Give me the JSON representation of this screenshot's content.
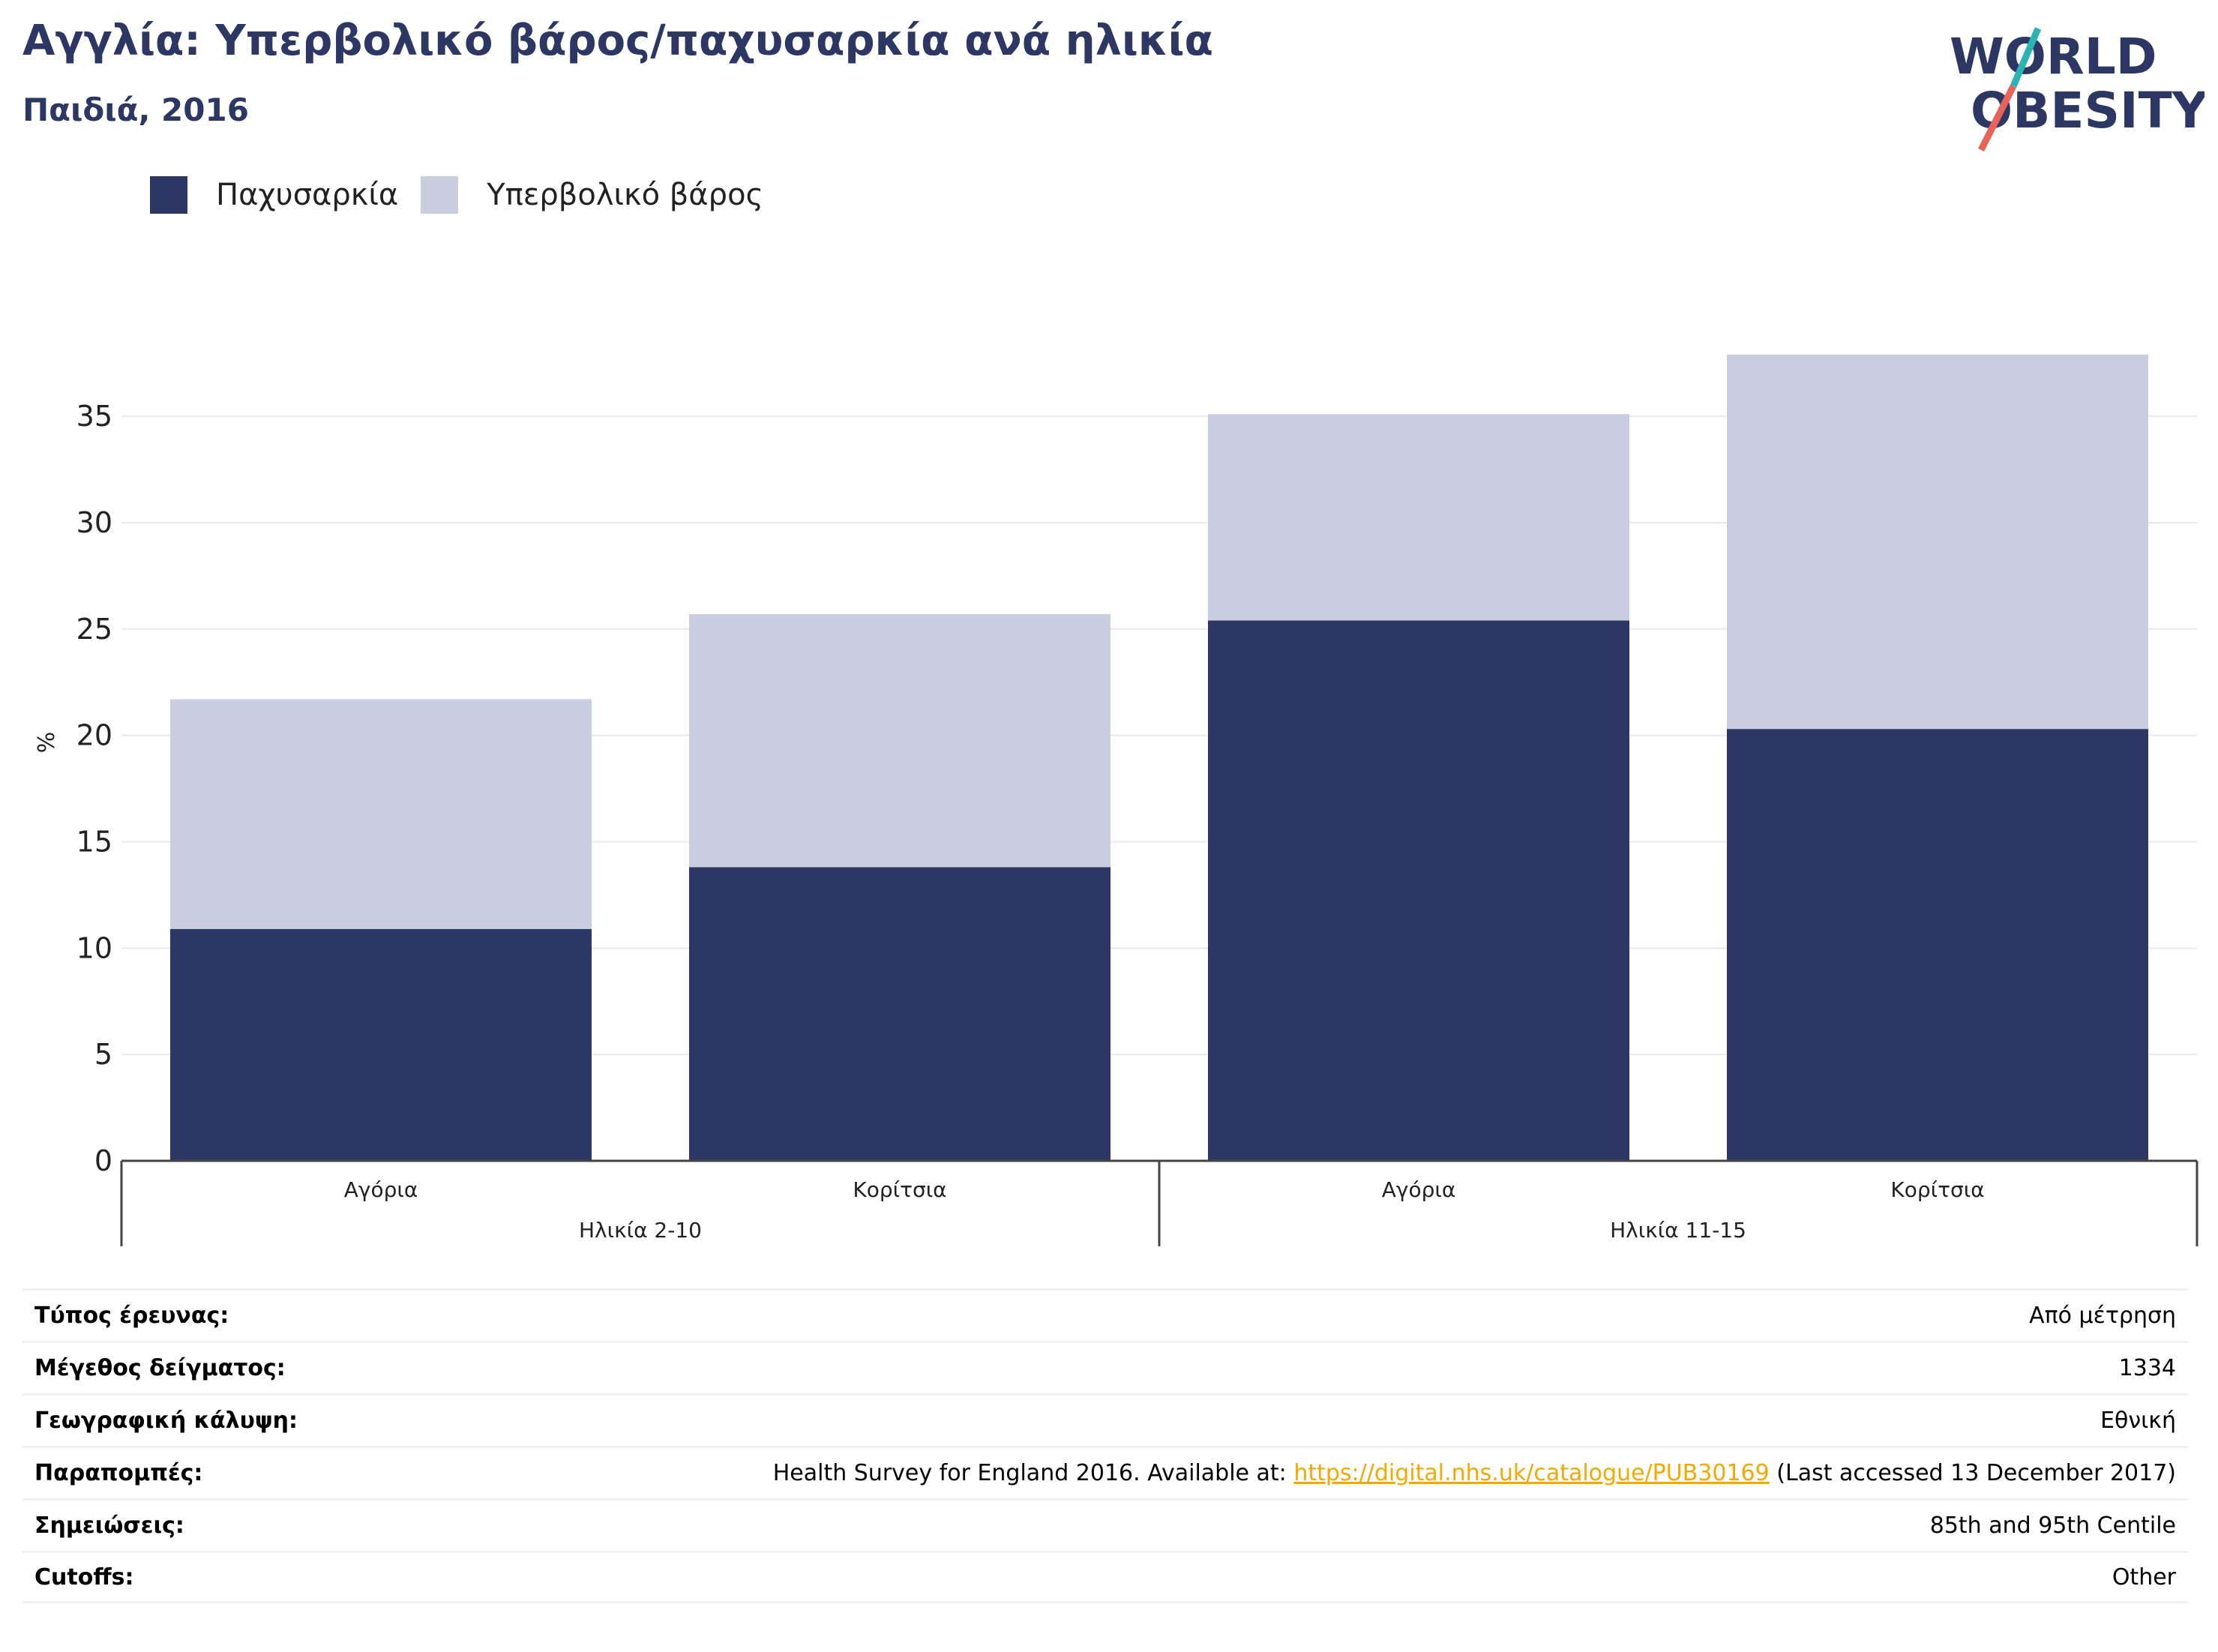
{
  "header": {
    "title": "Αγγλία: Υπερβολικό βάρος/παχυσαρκία ανά ηλικία",
    "subtitle": "Παιδιά, 2016"
  },
  "logo": {
    "line1": "WORLD",
    "line2": "OBESITY"
  },
  "colors": {
    "obesity": "#2c3764",
    "overweight": "#cacce0",
    "accent_teal": "#2ab3b1",
    "accent_red": "#e8645a",
    "link": "#f2a900"
  },
  "chart_data": {
    "type": "bar",
    "stacked": true,
    "ylabel": "%",
    "ylim": [
      0,
      38
    ],
    "yticks": [
      0,
      5,
      10,
      15,
      20,
      25,
      30,
      35
    ],
    "grid": true,
    "legend_position": "top-left",
    "categories": [
      "Αγόρια",
      "Κορίτσια",
      "Αγόρια",
      "Κορίτσια"
    ],
    "groups": [
      {
        "label": "Ηλικία 2-10",
        "categories": [
          "Αγόρια",
          "Κορίτσια"
        ]
      },
      {
        "label": "Ηλικία 11-15",
        "categories": [
          "Αγόρια",
          "Κορίτσια"
        ]
      }
    ],
    "series": [
      {
        "name": "Παχυσαρκία",
        "values": [
          10.9,
          13.8,
          25.4,
          20.3
        ]
      },
      {
        "name": "Υπερβολικό βάρος",
        "values": [
          10.8,
          11.9,
          9.7,
          17.6
        ]
      }
    ]
  },
  "meta": [
    {
      "label": "Τύπος έρευνας:",
      "value": "Από μέτρηση"
    },
    {
      "label": "Μέγεθος δείγματος:",
      "value": "1334"
    },
    {
      "label": "Γεωγραφική κάλυψη:",
      "value": "Εθνική"
    },
    {
      "label": "Παραπομπές:",
      "value_prefix": "Health Survey for England 2016. Available at: ",
      "link": "https://digital.nhs.uk/catalogue/PUB30169",
      "value_suffix": " (Last accessed 13 December 2017)"
    },
    {
      "label": "Σημειώσεις:",
      "value": "85th and 95th Centile"
    },
    {
      "label": "Cutoffs:",
      "value": "Other"
    }
  ]
}
